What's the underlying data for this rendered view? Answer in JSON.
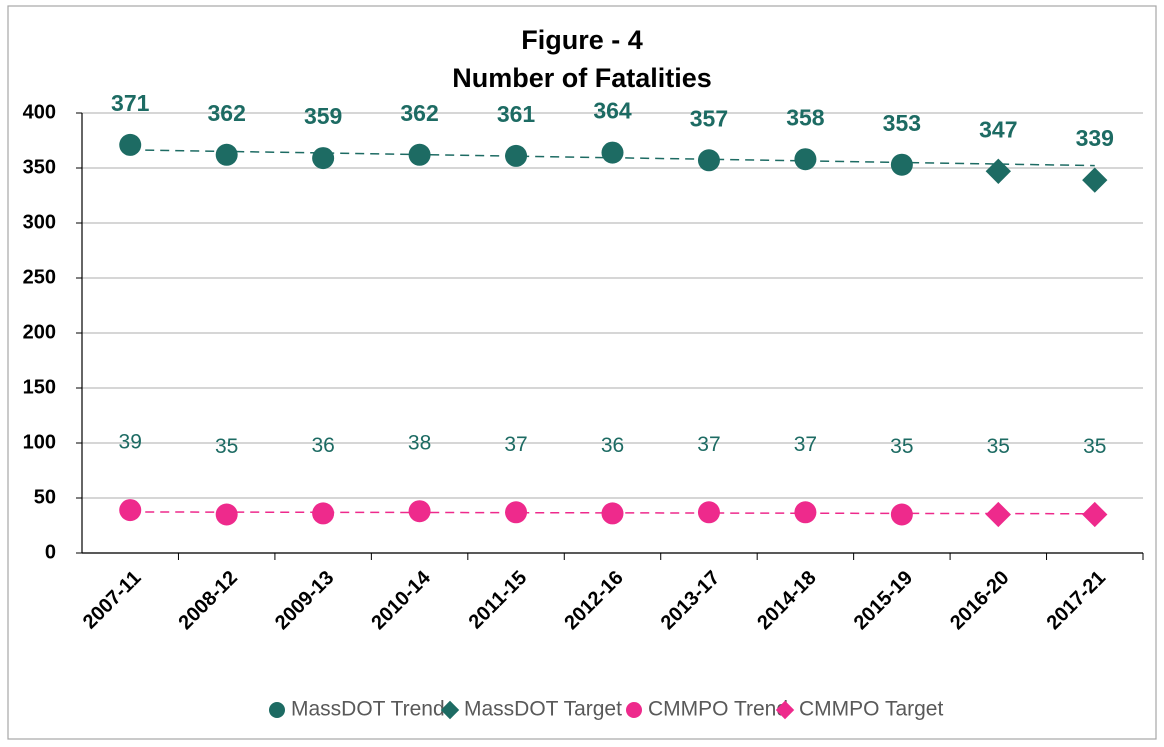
{
  "chart_data": {
    "type": "scatter",
    "title": "Figure - 4",
    "subtitle": "Number of Fatalities",
    "categories": [
      "2007-11",
      "2008-12",
      "2009-13",
      "2010-14",
      "2011-15",
      "2012-16",
      "2013-17",
      "2014-18",
      "2015-19",
      "2016-20",
      "2017-21"
    ],
    "series": [
      {
        "name": "MassDOT Trend",
        "color": "#1d6b63",
        "marker": "circle",
        "trendline": true,
        "values": [
          371,
          362,
          359,
          362,
          361,
          364,
          357,
          358,
          353,
          null,
          null
        ]
      },
      {
        "name": "MassDOT Target",
        "color": "#1d6b63",
        "marker": "diamond",
        "values": [
          null,
          null,
          null,
          null,
          null,
          null,
          null,
          null,
          null,
          347,
          339
        ]
      },
      {
        "name": "CMMPO Trend",
        "color": "#ee2a8c",
        "marker": "circle",
        "trendline": true,
        "values": [
          39,
          35,
          36,
          38,
          37,
          36,
          37,
          37,
          35,
          null,
          null
        ]
      },
      {
        "name": "CMMPO Target",
        "color": "#ee2a8c",
        "marker": "diamond",
        "values": [
          null,
          null,
          null,
          null,
          null,
          null,
          null,
          null,
          null,
          35,
          35
        ]
      }
    ],
    "ylim": [
      0,
      400
    ],
    "yticks": [
      0,
      50,
      100,
      150,
      200,
      250,
      300,
      350,
      400
    ],
    "grid": true,
    "legend": "bottom"
  }
}
